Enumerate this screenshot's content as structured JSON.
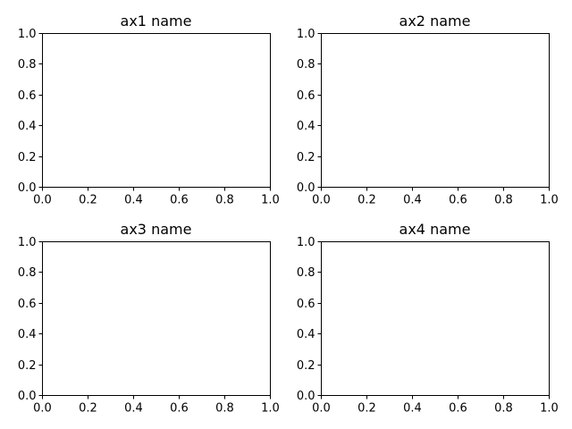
{
  "chart_data": [
    {
      "type": "line",
      "title": "ax1 name",
      "xlim": [
        0,
        1
      ],
      "ylim": [
        0,
        1
      ],
      "xticks": [
        0.0,
        0.2,
        0.4,
        0.6,
        0.8,
        1.0
      ],
      "yticks": [
        0.0,
        0.2,
        0.4,
        0.6,
        0.8,
        1.0
      ],
      "xtick_labels": [
        "0.0",
        "0.2",
        "0.4",
        "0.6",
        "0.8",
        "1.0"
      ],
      "ytick_labels": [
        "0.0",
        "0.2",
        "0.4",
        "0.6",
        "0.8",
        "1.0"
      ],
      "series": [],
      "grid": false
    },
    {
      "type": "line",
      "title": "ax2 name",
      "xlim": [
        0,
        1
      ],
      "ylim": [
        0,
        1
      ],
      "xticks": [
        0.0,
        0.2,
        0.4,
        0.6,
        0.8,
        1.0
      ],
      "yticks": [
        0.0,
        0.2,
        0.4,
        0.6,
        0.8,
        1.0
      ],
      "xtick_labels": [
        "0.0",
        "0.2",
        "0.4",
        "0.6",
        "0.8",
        "1.0"
      ],
      "ytick_labels": [
        "0.0",
        "0.2",
        "0.4",
        "0.6",
        "0.8",
        "1.0"
      ],
      "series": [],
      "grid": false
    },
    {
      "type": "line",
      "title": "ax3 name",
      "xlim": [
        0,
        1
      ],
      "ylim": [
        0,
        1
      ],
      "xticks": [
        0.0,
        0.2,
        0.4,
        0.6,
        0.8,
        1.0
      ],
      "yticks": [
        0.0,
        0.2,
        0.4,
        0.6,
        0.8,
        1.0
      ],
      "xtick_labels": [
        "0.0",
        "0.2",
        "0.4",
        "0.6",
        "0.8",
        "1.0"
      ],
      "ytick_labels": [
        "0.0",
        "0.2",
        "0.4",
        "0.6",
        "0.8",
        "1.0"
      ],
      "series": [],
      "grid": false
    },
    {
      "type": "line",
      "title": "ax4 name",
      "xlim": [
        0,
        1
      ],
      "ylim": [
        0,
        1
      ],
      "xticks": [
        0.0,
        0.2,
        0.4,
        0.6,
        0.8,
        1.0
      ],
      "yticks": [
        0.0,
        0.2,
        0.4,
        0.6,
        0.8,
        1.0
      ],
      "xtick_labels": [
        "0.0",
        "0.2",
        "0.4",
        "0.6",
        "0.8",
        "1.0"
      ],
      "ytick_labels": [
        "0.0",
        "0.2",
        "0.4",
        "0.6",
        "0.8",
        "1.0"
      ],
      "series": [],
      "grid": false
    }
  ],
  "colors": {
    "background": "#ffffff",
    "axis": "#000000",
    "text": "#000000"
  }
}
